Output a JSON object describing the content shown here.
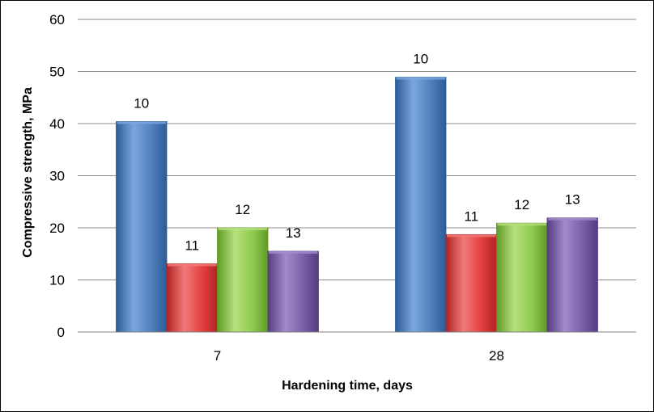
{
  "chart_data": {
    "type": "bar",
    "categories": [
      "7",
      "28"
    ],
    "series": [
      {
        "color": "#4f81bd",
        "color_light": "#7aa6dc",
        "color_dark": "#2c5c96",
        "values": [
          40.4,
          48.9
        ],
        "labels": [
          "10",
          "10"
        ]
      },
      {
        "color": "#e4403f",
        "color_light": "#f07a78",
        "color_dark": "#b02322",
        "values": [
          13.1,
          18.7
        ],
        "labels": [
          "11",
          "11"
        ]
      },
      {
        "color": "#8fca4f",
        "color_light": "#b6e07f",
        "color_dark": "#5f9a26",
        "values": [
          20.0,
          20.9
        ],
        "labels": [
          "12",
          "12"
        ]
      },
      {
        "color": "#7b5ea8",
        "color_light": "#a18bcb",
        "color_dark": "#553d80",
        "values": [
          15.5,
          21.9
        ],
        "labels": [
          "13",
          "13"
        ]
      }
    ],
    "xlabel": "Hardening time, days",
    "ylabel": "Compressive strength, MPa",
    "ylim": [
      0,
      60
    ],
    "yticks": [
      "0",
      "10",
      "20",
      "30",
      "40",
      "50",
      "60"
    ],
    "grid": true,
    "legend": "none"
  }
}
